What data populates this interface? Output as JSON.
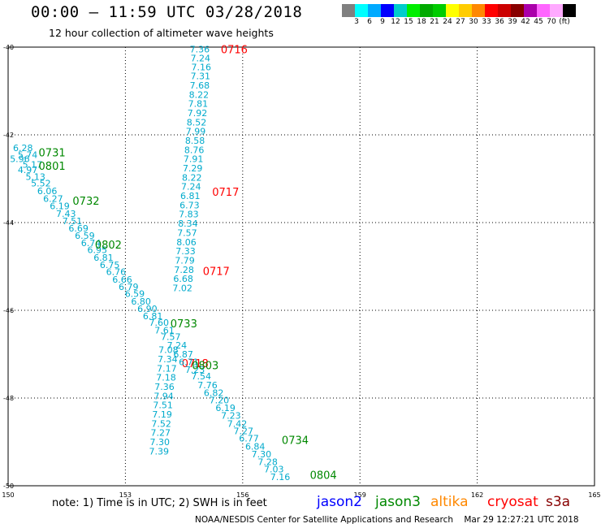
{
  "header": {
    "title": "00:00 – 11:59 UTC 03/28/2018",
    "subtitle": "12 hour collection of altimeter wave heights"
  },
  "legend": {
    "colors": [
      "#808080",
      "#00ffff",
      "#00aaff",
      "#0000ff",
      "#00cccc",
      "#00ee00",
      "#00aa00",
      "#00cc00",
      "#ffff00",
      "#ffcc00",
      "#ff8800",
      "#ff0000",
      "#cc0000",
      "#880000",
      "#aa00aa",
      "#ff66ff",
      "#ffaaff",
      "#000000"
    ],
    "labels": [
      "3",
      "6",
      "9",
      "12",
      "15",
      "18",
      "21",
      "24",
      "27",
      "30",
      "33",
      "36",
      "39",
      "42",
      "45",
      "70",
      "(ft)"
    ]
  },
  "footer": {
    "note": "note: 1) Time is in UTC; 2) SWH is in feet",
    "satellites": [
      {
        "name": "jason2",
        "color": "#0000ff"
      },
      {
        "name": "jason3",
        "color": "#008800"
      },
      {
        "name": "altika",
        "color": "#ff8800"
      },
      {
        "name": "cryosat",
        "color": "#ff0000"
      },
      {
        "name": "s3a",
        "color": "#880000"
      }
    ],
    "credit": "NOAA/NESDIS Center for Satellite Applications and Research",
    "generated": "Mar 29 12:27:21 UTC 2018"
  },
  "chart_data": {
    "type": "scatter",
    "title": "12 hour collection of altimeter wave heights",
    "xlabel": "",
    "ylabel": "",
    "xlim": [
      150,
      165
    ],
    "ylim": [
      -50,
      -40
    ],
    "x_ticks": [
      "150",
      "153",
      "156",
      "159",
      "162",
      "165"
    ],
    "y_ticks": [
      "-40",
      "-42",
      "-44",
      "-46",
      "-48",
      "-50"
    ],
    "grid": true,
    "series": [
      {
        "name": "cryosat",
        "color": "#ff0000",
        "value_color": "#00aacc",
        "points": [
          {
            "x": 154.9,
            "y": -40.05,
            "v": "7.36"
          },
          {
            "x": 154.92,
            "y": -40.25,
            "v": "7.24"
          },
          {
            "x": 154.94,
            "y": -40.45,
            "v": "7.16"
          },
          {
            "x": 154.92,
            "y": -40.66,
            "v": "7.31"
          },
          {
            "x": 154.9,
            "y": -40.87,
            "v": "7.68"
          },
          {
            "x": 154.88,
            "y": -41.08,
            "v": "8.22"
          },
          {
            "x": 154.86,
            "y": -41.29,
            "v": "7.81"
          },
          {
            "x": 154.84,
            "y": -41.5,
            "v": "7.92"
          },
          {
            "x": 154.82,
            "y": -41.71,
            "v": "8.52"
          },
          {
            "x": 154.8,
            "y": -41.92,
            "v": "7.99"
          },
          {
            "x": 154.78,
            "y": -42.13,
            "v": "8.58"
          },
          {
            "x": 154.76,
            "y": -42.34,
            "v": "8.76"
          },
          {
            "x": 154.74,
            "y": -42.55,
            "v": "7.91"
          },
          {
            "x": 154.72,
            "y": -42.76,
            "v": "7.29"
          },
          {
            "x": 154.7,
            "y": -42.97,
            "v": "8.22"
          },
          {
            "x": 154.68,
            "y": -43.18,
            "v": "7.24"
          },
          {
            "x": 154.66,
            "y": -43.39,
            "v": "6.81"
          },
          {
            "x": 154.64,
            "y": -43.6,
            "v": "6.73"
          },
          {
            "x": 154.62,
            "y": -43.81,
            "v": "7.83"
          },
          {
            "x": 154.6,
            "y": -44.02,
            "v": "8.34"
          },
          {
            "x": 154.58,
            "y": -44.23,
            "v": "7.57"
          },
          {
            "x": 154.56,
            "y": -44.44,
            "v": "8.06"
          },
          {
            "x": 154.54,
            "y": -44.65,
            "v": "7.33"
          },
          {
            "x": 154.52,
            "y": -44.86,
            "v": "7.79"
          },
          {
            "x": 154.5,
            "y": -45.07,
            "v": "7.28"
          },
          {
            "x": 154.48,
            "y": -45.28,
            "v": "6.68"
          },
          {
            "x": 154.46,
            "y": -45.49,
            "v": "7.02"
          },
          {
            "x": 154.1,
            "y": -46.9,
            "v": "7.08"
          },
          {
            "x": 154.08,
            "y": -47.11,
            "v": "7.34"
          },
          {
            "x": 154.06,
            "y": -47.32,
            "v": "7.17"
          },
          {
            "x": 154.04,
            "y": -47.53,
            "v": "7.18"
          },
          {
            "x": 154.0,
            "y": -47.74,
            "v": "7.36"
          },
          {
            "x": 153.98,
            "y": -47.95,
            "v": "7.94"
          },
          {
            "x": 153.96,
            "y": -48.16,
            "v": "7.51"
          },
          {
            "x": 153.94,
            "y": -48.37,
            "v": "7.19"
          },
          {
            "x": 153.92,
            "y": -48.58,
            "v": "7.52"
          },
          {
            "x": 153.9,
            "y": -48.79,
            "v": "7.27"
          },
          {
            "x": 153.88,
            "y": -49.0,
            "v": "7.30"
          },
          {
            "x": 153.86,
            "y": -49.21,
            "v": "7.39"
          }
        ],
        "time_labels": [
          {
            "x": 155.44,
            "y": -40.05,
            "t": "0716"
          },
          {
            "x": 155.22,
            "y": -43.3,
            "t": "0717"
          },
          {
            "x": 154.98,
            "y": -45.1,
            "t": "0717"
          },
          {
            "x": 154.44,
            "y": -47.2,
            "t": "0718"
          }
        ]
      },
      {
        "name": "jason3",
        "color": "#008800",
        "value_color": "#00aacc",
        "points": [
          {
            "x": 150.38,
            "y": -42.3,
            "v": "6.28"
          },
          {
            "x": 150.5,
            "y": -42.45,
            "v": "5.74"
          },
          {
            "x": 150.3,
            "y": -42.55,
            "v": "5.96"
          },
          {
            "x": 150.62,
            "y": -42.68,
            "v": "5.17"
          },
          {
            "x": 150.5,
            "y": -42.8,
            "v": "4.97"
          },
          {
            "x": 150.7,
            "y": -42.95,
            "v": "5.13"
          },
          {
            "x": 150.84,
            "y": -43.1,
            "v": "5.52"
          },
          {
            "x": 151.0,
            "y": -43.28,
            "v": "6.06"
          },
          {
            "x": 151.15,
            "y": -43.45,
            "v": "6.27"
          },
          {
            "x": 151.32,
            "y": -43.62,
            "v": "6.19"
          },
          {
            "x": 151.48,
            "y": -43.8,
            "v": "7.43"
          },
          {
            "x": 151.64,
            "y": -43.96,
            "v": "7.51"
          },
          {
            "x": 151.8,
            "y": -44.13,
            "v": "6.69"
          },
          {
            "x": 151.96,
            "y": -44.3,
            "v": "6.59"
          },
          {
            "x": 152.12,
            "y": -44.46,
            "v": "6.74"
          },
          {
            "x": 152.28,
            "y": -44.62,
            "v": "6.95"
          },
          {
            "x": 152.44,
            "y": -44.8,
            "v": "6.81"
          },
          {
            "x": 152.6,
            "y": -44.96,
            "v": "6.75"
          },
          {
            "x": 152.76,
            "y": -45.12,
            "v": "6.76"
          },
          {
            "x": 152.92,
            "y": -45.3,
            "v": "6.66"
          },
          {
            "x": 153.08,
            "y": -45.46,
            "v": "6.79"
          },
          {
            "x": 153.24,
            "y": -45.62,
            "v": "6.59"
          },
          {
            "x": 153.4,
            "y": -45.8,
            "v": "6.80"
          },
          {
            "x": 153.56,
            "y": -45.96,
            "v": "6.90"
          },
          {
            "x": 153.7,
            "y": -46.13,
            "v": "6.81"
          },
          {
            "x": 153.86,
            "y": -46.28,
            "v": "7.60"
          },
          {
            "x": 154.0,
            "y": -46.45,
            "v": "7.61"
          },
          {
            "x": 154.16,
            "y": -46.6,
            "v": "7.57"
          },
          {
            "x": 154.32,
            "y": -46.8,
            "v": "7.24"
          },
          {
            "x": 154.48,
            "y": -47.0,
            "v": "6.87"
          },
          {
            "x": 154.62,
            "y": -47.18,
            "v": "6.71"
          },
          {
            "x": 154.78,
            "y": -47.35,
            "v": "7.23"
          },
          {
            "x": 154.94,
            "y": -47.5,
            "v": "7.54"
          },
          {
            "x": 155.1,
            "y": -47.7,
            "v": "7.76"
          },
          {
            "x": 155.26,
            "y": -47.88,
            "v": "6.82"
          },
          {
            "x": 155.4,
            "y": -48.05,
            "v": "7.20"
          },
          {
            "x": 155.56,
            "y": -48.22,
            "v": "6.19"
          },
          {
            "x": 155.7,
            "y": -48.4,
            "v": "7.23"
          },
          {
            "x": 155.86,
            "y": -48.58,
            "v": "7.42"
          },
          {
            "x": 156.02,
            "y": -48.75,
            "v": "7.27"
          },
          {
            "x": 156.16,
            "y": -48.92,
            "v": "6.77"
          },
          {
            "x": 156.32,
            "y": -49.1,
            "v": "6.84"
          },
          {
            "x": 156.48,
            "y": -49.28,
            "v": "7.30"
          },
          {
            "x": 156.64,
            "y": -49.45,
            "v": "7.28"
          },
          {
            "x": 156.8,
            "y": -49.62,
            "v": "7.03"
          },
          {
            "x": 156.96,
            "y": -49.8,
            "v": "7.16"
          }
        ],
        "time_labels": [
          {
            "x": 150.78,
            "y": -42.4,
            "t": "0731"
          },
          {
            "x": 150.78,
            "y": -42.7,
            "t": "0801"
          },
          {
            "x": 151.65,
            "y": -43.5,
            "t": "0732"
          },
          {
            "x": 152.22,
            "y": -44.5,
            "t": "0802"
          },
          {
            "x": 154.15,
            "y": -46.3,
            "t": "0733"
          },
          {
            "x": 154.7,
            "y": -47.25,
            "t": "0803"
          },
          {
            "x": 157.0,
            "y": -48.95,
            "t": "0734"
          },
          {
            "x": 157.72,
            "y": -49.75,
            "t": "0804"
          }
        ]
      }
    ]
  }
}
